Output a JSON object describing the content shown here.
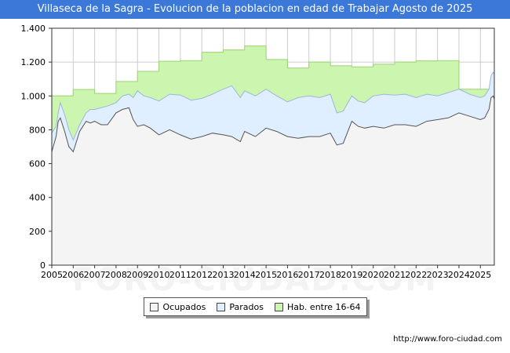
{
  "colors": {
    "title_bg": "#3c78d8",
    "ocupados_fill": "#f4f4f4",
    "ocupados_line": "#555555",
    "parados_fill": "#e0efff",
    "parados_line": "#9cb7dc",
    "hab_fill": "#ccf5b0",
    "hab_line": "#9bd46f",
    "grid": "#cccccc"
  },
  "chart_data": {
    "type": "area",
    "title": "Villaseca de la Sagra - Evolucion de la poblacion en edad de Trabajar Agosto de 2025",
    "xlabel": "",
    "ylabel": "",
    "xlim": [
      2005,
      2025.65
    ],
    "ylim": [
      0,
      1400
    ],
    "y_ticks": [
      0,
      200,
      400,
      600,
      800,
      1000,
      1200,
      1400
    ],
    "y_tick_labels": [
      "0",
      "200",
      "400",
      "600",
      "800",
      "1.000",
      "1.200",
      "1.400"
    ],
    "x_tick_labels": [
      "2005",
      "2006",
      "2007",
      "2008",
      "2009",
      "2010",
      "2011",
      "2012",
      "2013",
      "2014",
      "2015",
      "2016",
      "2017",
      "2018",
      "2019",
      "2020",
      "2021",
      "2022",
      "2023",
      "2024",
      "2025"
    ],
    "grid": true,
    "legend_position": "bottom",
    "series": [
      {
        "name": "Hab. entre 16-64",
        "step": true,
        "x": [
          2005,
          2006,
          2007,
          2008,
          2009,
          2010,
          2011,
          2012,
          2013,
          2014,
          2015,
          2016,
          2017,
          2018,
          2019,
          2020,
          2021,
          2022,
          2023,
          2024
        ],
        "values": [
          1000,
          1038,
          1015,
          1085,
          1145,
          1205,
          1208,
          1258,
          1272,
          1295,
          1215,
          1165,
          1200,
          1178,
          1172,
          1187,
          1200,
          1207,
          1208,
          1040
        ]
      },
      {
        "name": "Parados",
        "x": [
          2005,
          2005.2,
          2005.3,
          2005.4,
          2005.6,
          2005.8,
          2006,
          2006.3,
          2006.6,
          2006.8,
          2007,
          2007.3,
          2007.6,
          2008,
          2008.3,
          2008.6,
          2008.8,
          2009,
          2009.3,
          2009.6,
          2010,
          2010.5,
          2011,
          2011.5,
          2012,
          2012.5,
          2013,
          2013.4,
          2013.8,
          2014,
          2014.5,
          2015,
          2015.5,
          2016,
          2016.5,
          2017,
          2017.5,
          2018,
          2018.3,
          2018.6,
          2019,
          2019.3,
          2019.6,
          2020,
          2020.5,
          2021,
          2021.5,
          2022,
          2022.5,
          2023,
          2023.5,
          2024,
          2024.5,
          2025,
          2025.2,
          2025.4,
          2025.5,
          2025.6,
          2025.65
        ],
        "values": [
          780,
          820,
          900,
          960,
          890,
          800,
          740,
          830,
          900,
          920,
          920,
          930,
          940,
          960,
          1000,
          1010,
          990,
          1030,
          1000,
          990,
          970,
          1010,
          1005,
          975,
          985,
          1010,
          1040,
          1060,
          990,
          1030,
          1000,
          1040,
          1000,
          965,
          990,
          1000,
          990,
          1010,
          900,
          910,
          1000,
          970,
          960,
          1000,
          1010,
          1005,
          1010,
          990,
          1010,
          1000,
          1020,
          1040,
          1010,
          990,
          1000,
          1040,
          1120,
          1140,
          1130
        ]
      },
      {
        "name": "Ocupados",
        "x": [
          2005,
          2005.2,
          2005.3,
          2005.4,
          2005.6,
          2005.8,
          2006,
          2006.3,
          2006.6,
          2006.8,
          2007,
          2007.3,
          2007.6,
          2008,
          2008.3,
          2008.6,
          2008.8,
          2009,
          2009.3,
          2009.6,
          2010,
          2010.5,
          2011,
          2011.5,
          2012,
          2012.5,
          2013,
          2013.4,
          2013.8,
          2014,
          2014.5,
          2015,
          2015.5,
          2016,
          2016.5,
          2017,
          2017.5,
          2018,
          2018.3,
          2018.6,
          2019,
          2019.3,
          2019.6,
          2020,
          2020.5,
          2021,
          2021.5,
          2022,
          2022.5,
          2023,
          2023.5,
          2024,
          2024.5,
          2025,
          2025.2,
          2025.4,
          2025.5,
          2025.6,
          2025.65
        ],
        "values": [
          670,
          760,
          850,
          870,
          790,
          700,
          670,
          790,
          850,
          840,
          850,
          830,
          830,
          900,
          920,
          930,
          860,
          820,
          830,
          810,
          770,
          800,
          770,
          745,
          760,
          780,
          770,
          760,
          730,
          790,
          760,
          810,
          790,
          760,
          750,
          760,
          760,
          780,
          710,
          720,
          850,
          820,
          810,
          820,
          810,
          830,
          830,
          820,
          850,
          860,
          870,
          900,
          880,
          860,
          870,
          920,
          990,
          1000,
          980
        ]
      }
    ]
  },
  "legend": [
    {
      "label": "Ocupados",
      "color_key": "ocupados"
    },
    {
      "label": "Parados",
      "color_key": "parados"
    },
    {
      "label": "Hab. entre 16-64",
      "color_key": "hab"
    }
  ],
  "watermark": "FORO-CIUDAD.COM",
  "source": "http://www.foro-ciudad.com"
}
